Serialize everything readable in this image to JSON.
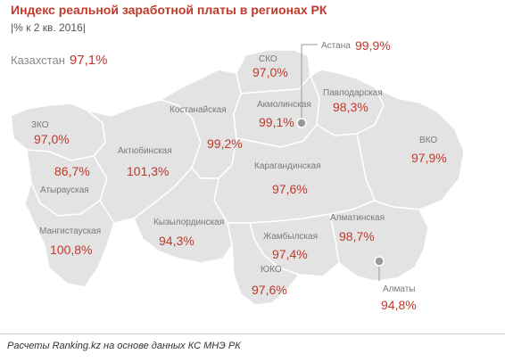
{
  "title": "Индекс реальной заработной платы в регионах РК",
  "subtitle": "|% к 2 кв. 2016|",
  "national": {
    "label": "Казахстан",
    "value": "97,1%"
  },
  "colors": {
    "accent": "#c0392b",
    "region_fill": "#e3e3e3",
    "region_border": "#ffffff",
    "label": "#7a7a7a"
  },
  "regions": [
    {
      "id": "zko",
      "name": "ЗКО",
      "value": "97,0%"
    },
    {
      "id": "atyrau",
      "name": "Атырауская",
      "value": "86,7%"
    },
    {
      "id": "mangystau",
      "name": "Мангистауская",
      "value": "100,8%"
    },
    {
      "id": "aktobe",
      "name": "Актюбинская",
      "value": "101,3%"
    },
    {
      "id": "kostanay",
      "name": "Костанайская",
      "value": "99,2%"
    },
    {
      "id": "sko",
      "name": "СКО",
      "value": "97,0%"
    },
    {
      "id": "akmola",
      "name": "Акмолинская",
      "value": "99,1%"
    },
    {
      "id": "pavlodar",
      "name": "Павлодарская",
      "value": "98,3%"
    },
    {
      "id": "vko",
      "name": "ВКО",
      "value": "97,9%"
    },
    {
      "id": "karaganda",
      "name": "Карагандинская",
      "value": "97,6%"
    },
    {
      "id": "kyzylorda",
      "name": "Кызылординская",
      "value": "94,3%"
    },
    {
      "id": "zhambyl",
      "name": "Жамбылская",
      "value": "97,4%"
    },
    {
      "id": "almaty_obl",
      "name": "Алматинская",
      "value": "98,7%"
    },
    {
      "id": "uko",
      "name": "ЮКО",
      "value": "97,6%"
    }
  ],
  "cities": [
    {
      "id": "astana",
      "name": "Астана",
      "value": "99,9%"
    },
    {
      "id": "almaty",
      "name": "Алматы",
      "value": "94,8%"
    }
  ],
  "source": "Расчеты Ranking.kz на основе данных КС МНЭ РК"
}
